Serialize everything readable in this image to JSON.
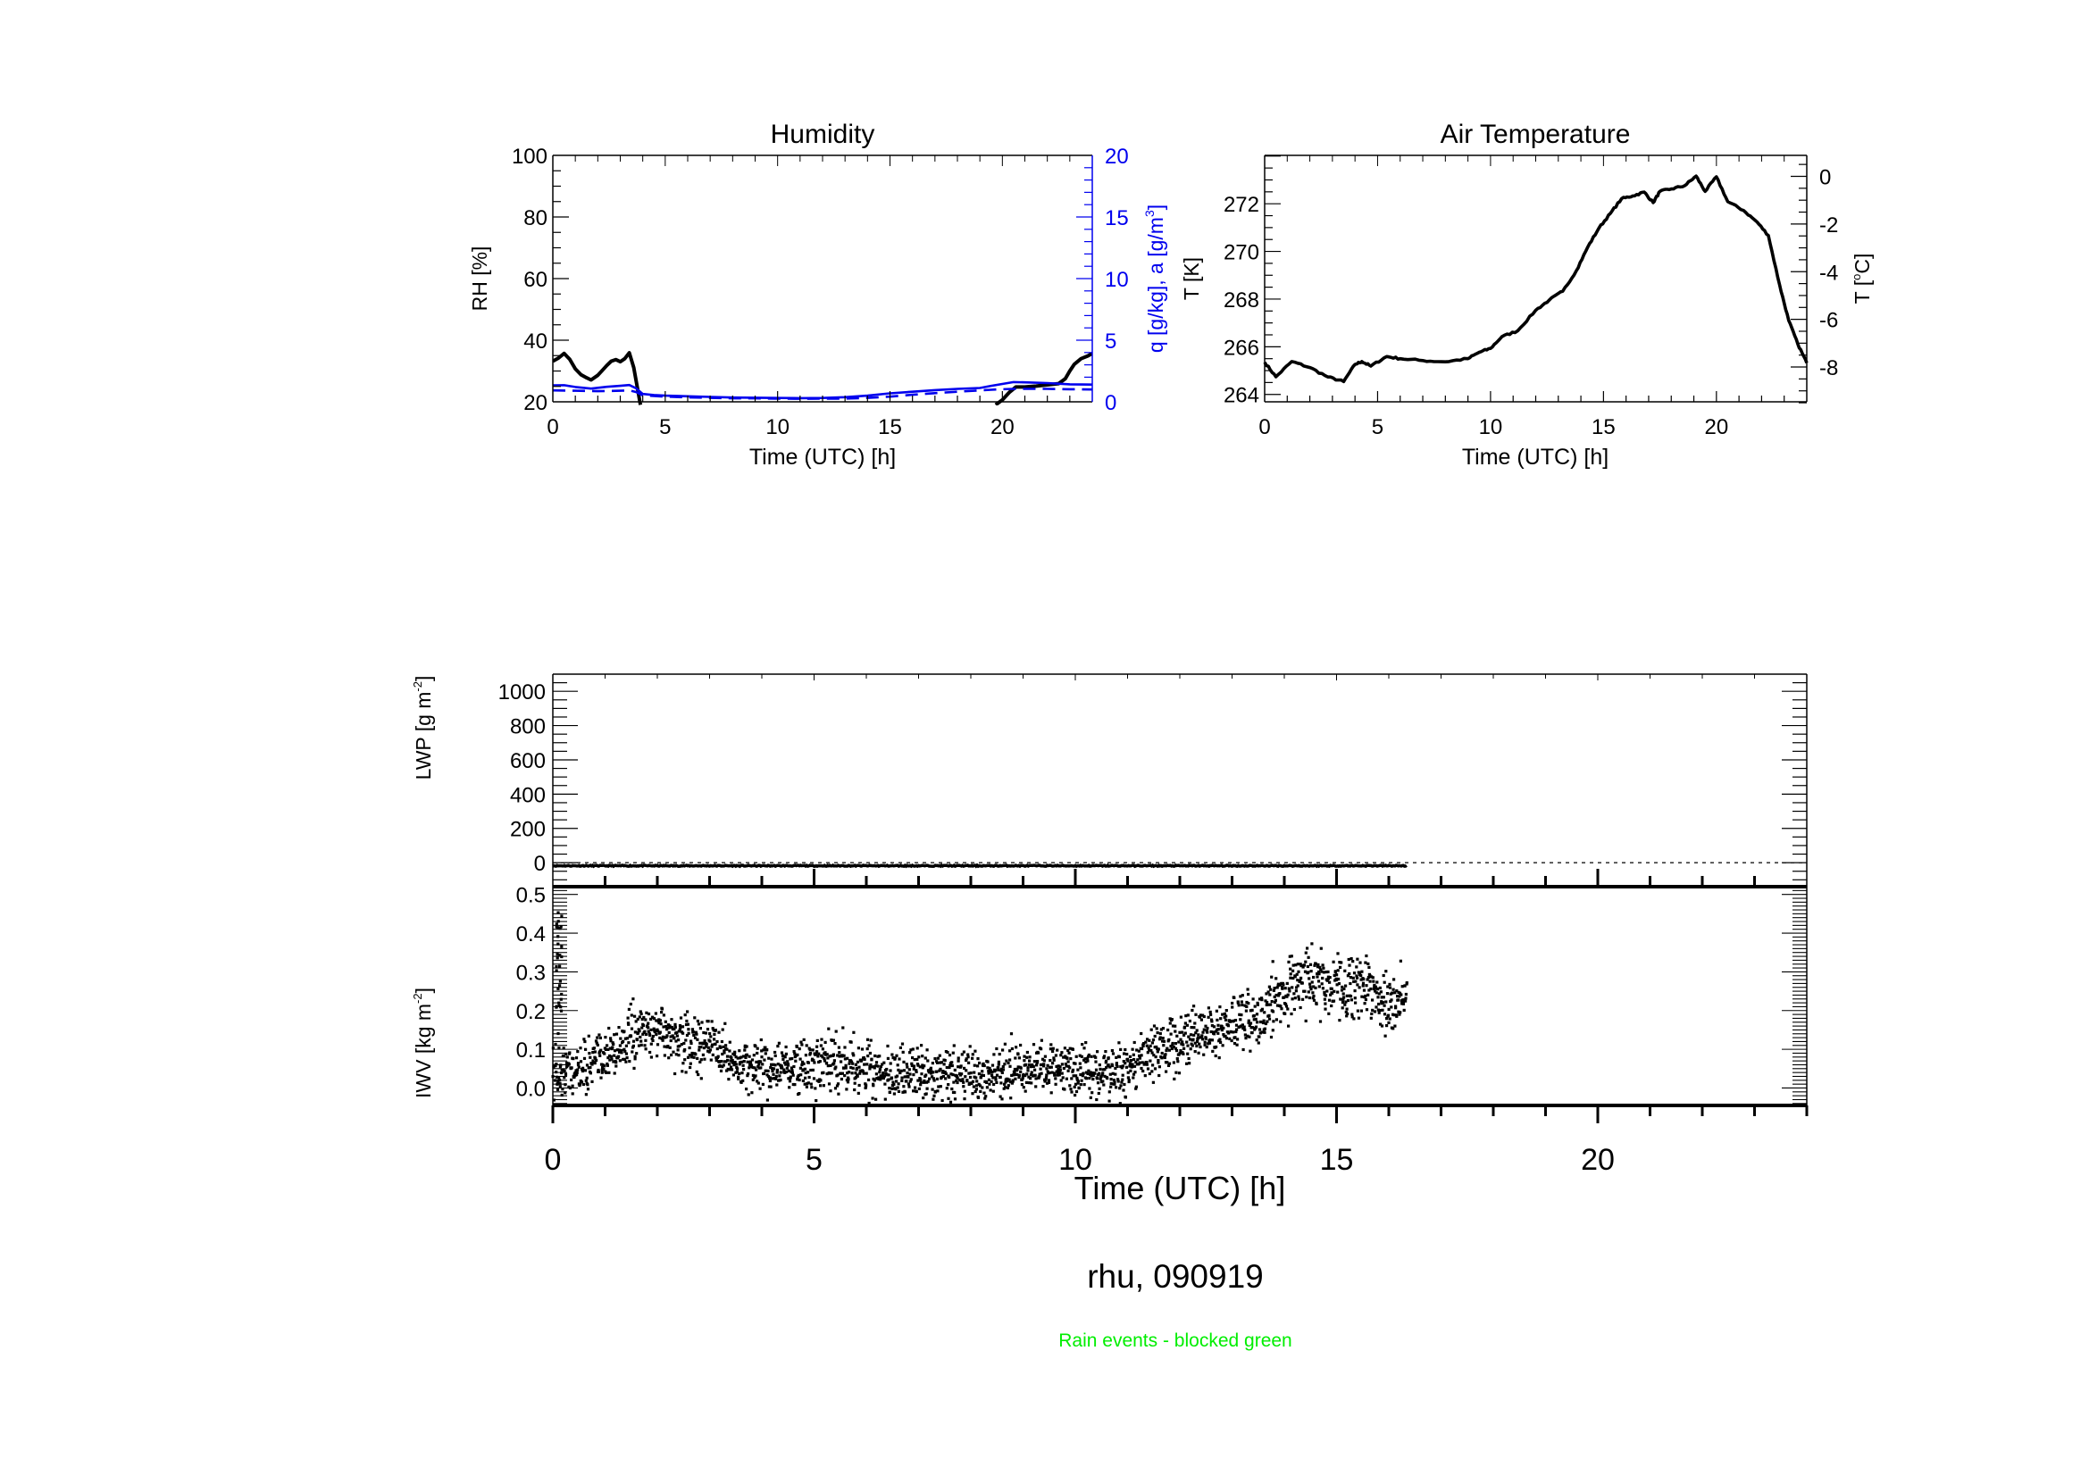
{
  "figure": {
    "footer_title": "rhu, 090919",
    "footer_note": "Rain events - blocked green",
    "footer_note_color": "#00ee00"
  },
  "chart_data": [
    {
      "id": "humidity",
      "type": "line",
      "title": "Humidity",
      "xlabel": "Time (UTC) [h]",
      "ylabel": "RH [%]",
      "ylabel_right": "q [g/kg], a [g/m³]",
      "ylabel_right_main": "q [g/kg], a [g/m",
      "ylabel_right_sup": "3",
      "ylabel_right_end": "]",
      "right_axis_color": "#0000ee",
      "xlim": [
        0,
        24
      ],
      "ylim": [
        20,
        100
      ],
      "ylim_right": [
        0,
        20
      ],
      "xticks": [
        "0",
        "5",
        "10",
        "15",
        "20"
      ],
      "yticks": [
        "20",
        "40",
        "60",
        "80",
        "100"
      ],
      "yticks_right": [
        "0",
        "5",
        "10",
        "15",
        "20"
      ],
      "series": [
        {
          "name": "RH",
          "axis": "left",
          "color": "#000000",
          "style": "solid",
          "segments": [
            {
              "x": [
                0,
                0.25,
                0.5,
                0.75,
                1.0,
                1.25,
                1.5,
                1.7,
                2.0,
                2.2,
                2.4,
                2.6,
                2.8,
                3.0,
                3.2,
                3.4,
                3.6,
                3.75,
                3.9
              ],
              "y": [
                33.2,
                34.2,
                35.7,
                33.8,
                30.7,
                28.8,
                27.8,
                27.1,
                28.6,
                30.2,
                31.8,
                33.2,
                33.7,
                33.0,
                34.0,
                35.9,
                31.1,
                25.0,
                19.0
              ]
            },
            {
              "x": [
                19.7,
                20.0,
                20.3,
                20.6,
                21.0,
                21.5,
                22.0,
                22.5,
                22.8,
                23.0,
                23.2,
                23.5,
                23.8,
                24.0
              ],
              "y": [
                19.0,
                20.6,
                23.0,
                24.8,
                24.8,
                25.1,
                25.5,
                25.9,
                27.5,
                30.0,
                32.2,
                34.0,
                34.9,
                35.7
              ]
            }
          ]
        },
        {
          "name": "q",
          "axis": "right",
          "color": "#0000ee",
          "style": "solid",
          "segments": [
            {
              "x": [
                0,
                0.5,
                1.0,
                1.7,
                2.4,
                3.0,
                3.4,
                3.7,
                4.0,
                4.5,
                5,
                6,
                7,
                8,
                9,
                10,
                11,
                12,
                13,
                14,
                15,
                16,
                17,
                18,
                19,
                19.5,
                20,
                20.5,
                21,
                22,
                23,
                24
              ],
              "y": [
                1.33,
                1.35,
                1.2,
                1.07,
                1.22,
                1.3,
                1.36,
                1.1,
                0.64,
                0.55,
                0.5,
                0.45,
                0.4,
                0.35,
                0.33,
                0.31,
                0.3,
                0.31,
                0.38,
                0.5,
                0.69,
                0.82,
                0.95,
                1.05,
                1.12,
                1.3,
                1.45,
                1.6,
                1.58,
                1.52,
                1.42,
                1.4
              ]
            }
          ]
        },
        {
          "name": "a",
          "axis": "right",
          "color": "#0000ee",
          "style": "dashed",
          "segments": [
            {
              "x": [
                0,
                1.0,
                2.0,
                3.0,
                3.4,
                3.7,
                4.0,
                5,
                6,
                7,
                8,
                9,
                10,
                11,
                12,
                13,
                14,
                15,
                16,
                17,
                18,
                19,
                19.5,
                20,
                20.5,
                22,
                23,
                24
              ],
              "y": [
                0.93,
                0.9,
                0.86,
                0.9,
                0.93,
                0.8,
                0.52,
                0.42,
                0.36,
                0.32,
                0.28,
                0.28,
                0.26,
                0.25,
                0.26,
                0.26,
                0.32,
                0.42,
                0.57,
                0.7,
                0.82,
                0.93,
                0.98,
                1.02,
                1.05,
                1.05,
                1.02,
                1.0
              ]
            }
          ]
        }
      ]
    },
    {
      "id": "air-temperature",
      "type": "line",
      "title": "Air Temperature",
      "xlabel": "Time (UTC) [h]",
      "ylabel": "T [K]",
      "ylabel_right": "T [°C]",
      "ylabel_right_main": "T [",
      "ylabel_right_sup": "o",
      "ylabel_right_end": "C]",
      "xlim": [
        0,
        24
      ],
      "ylim": [
        263.69,
        274.03
      ],
      "xticks": [
        "0",
        "5",
        "10",
        "15",
        "20"
      ],
      "yticks": [
        "264",
        "266",
        "268",
        "270",
        "272"
      ],
      "yticks_right": [
        "0",
        "-2",
        "-4",
        "-6",
        "-8"
      ],
      "series": [
        {
          "name": "T",
          "color": "#000000",
          "style": "solid",
          "x": [
            0,
            0.5,
            1.2,
            2.0,
            2.8,
            3.5,
            4.0,
            4.3,
            4.7,
            5.4,
            6.0,
            7.0,
            8.0,
            9.0,
            9.5,
            10.0,
            10.5,
            11.2,
            12.0,
            12.6,
            13.2,
            13.8,
            14.3,
            14.8,
            15.3,
            15.8,
            16.3,
            16.8,
            17.2,
            17.5,
            18.0,
            18.6,
            19.1,
            19.5,
            20.0,
            20.5,
            21.2,
            21.8,
            22.3,
            22.8,
            23.2,
            23.6,
            24.0
          ],
          "y": [
            265.35,
            264.74,
            265.38,
            265.13,
            264.73,
            264.54,
            265.26,
            265.38,
            265.19,
            265.59,
            265.5,
            265.42,
            265.37,
            265.5,
            265.77,
            265.93,
            266.42,
            266.67,
            267.53,
            267.96,
            268.33,
            269.19,
            270.18,
            270.98,
            271.59,
            272.21,
            272.33,
            272.49,
            272.05,
            272.52,
            272.62,
            272.76,
            273.16,
            272.52,
            273.13,
            272.09,
            271.72,
            271.23,
            270.67,
            268.58,
            267.1,
            266.12,
            265.32
          ]
        }
      ]
    },
    {
      "id": "lwp",
      "type": "line",
      "title": "",
      "xlabel": "",
      "ylabel_main": "LWP [g m",
      "ylabel_sup": "-2",
      "ylabel_end": "]",
      "ylabel": "LWP [g m⁻²]",
      "xlim": [
        0,
        24
      ],
      "ylim": [
        -140,
        1100
      ],
      "yticks": [
        "0",
        "200",
        "400",
        "600",
        "800",
        "1000"
      ],
      "reference_line": {
        "y": 0,
        "style": "dotted"
      },
      "series": [
        {
          "name": "LWP",
          "color": "#000000",
          "x_start": 0,
          "x_end": 16.35,
          "mean": -18,
          "jitter": 6
        }
      ]
    },
    {
      "id": "iwv",
      "type": "scatter",
      "title": "",
      "xlabel": "Time (UTC) [h]",
      "ylabel_main": "IWV [kg m",
      "ylabel_sup": "-2",
      "ylabel_end": "]",
      "ylabel": "IWV [kg m⁻²]",
      "xlim": [
        0,
        24
      ],
      "ylim": [
        -0.045,
        0.52
      ],
      "xticks": [
        "0",
        "5",
        "10",
        "15",
        "20"
      ],
      "yticks": [
        "0.0",
        "0.1",
        "0.2",
        "0.3",
        "0.4",
        "0.5"
      ],
      "series": [
        {
          "name": "IWV",
          "color": "#000000",
          "marker": "square-dot",
          "x_end": 16.35,
          "points_per_hour": 140,
          "trend_x": [
            0,
            0.5,
            1.0,
            1.5,
            2.0,
            2.5,
            3.0,
            3.5,
            4.0,
            4.5,
            5.0,
            5.5,
            6.0,
            6.5,
            7.0,
            7.5,
            8.0,
            8.5,
            9.0,
            9.5,
            10.0,
            10.5,
            11.0,
            11.5,
            12.0,
            12.5,
            13.0,
            13.5,
            14.0,
            14.5,
            15.0,
            15.5,
            16.0,
            16.35
          ],
          "trend_mean": [
            0.04,
            0.05,
            0.08,
            0.13,
            0.16,
            0.11,
            0.12,
            0.06,
            0.05,
            0.05,
            0.05,
            0.07,
            0.05,
            0.03,
            0.04,
            0.03,
            0.03,
            0.04,
            0.05,
            0.05,
            0.05,
            0.04,
            0.04,
            0.1,
            0.12,
            0.14,
            0.16,
            0.17,
            0.26,
            0.29,
            0.26,
            0.27,
            0.22,
            0.24
          ],
          "trend_spread": [
            0.05,
            0.05,
            0.05,
            0.05,
            0.05,
            0.05,
            0.05,
            0.045,
            0.045,
            0.045,
            0.05,
            0.05,
            0.05,
            0.045,
            0.045,
            0.045,
            0.045,
            0.045,
            0.045,
            0.045,
            0.045,
            0.045,
            0.045,
            0.05,
            0.05,
            0.05,
            0.05,
            0.05,
            0.055,
            0.055,
            0.055,
            0.055,
            0.055,
            0.055
          ],
          "edge_spike": {
            "x": 0.05,
            "y_min": 0.12,
            "y_max": 0.47,
            "count": 30
          }
        }
      ]
    }
  ]
}
